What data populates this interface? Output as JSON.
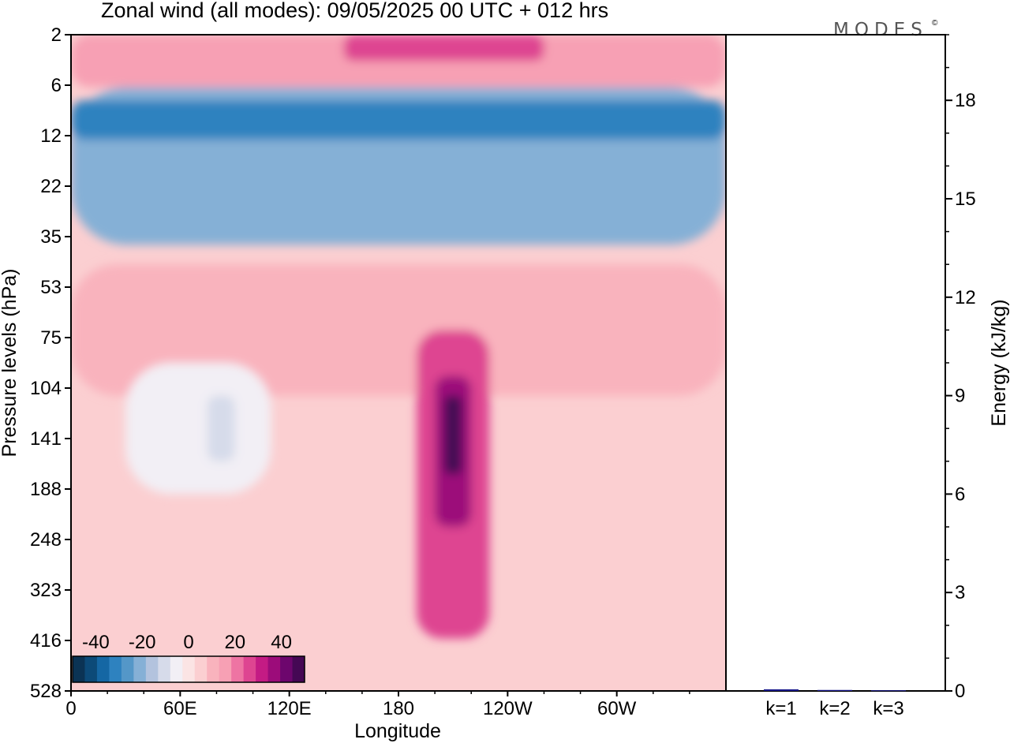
{
  "title": "Zonal wind (all modes):  09/05/2025  00 UTC  + 012 hrs",
  "logo": "MODES",
  "logo_mark": "©",
  "chart_data": [
    {
      "type": "heatmap",
      "title": "Zonal wind (all modes):  09/05/2025  00 UTC  + 012 hrs",
      "xlabel": "Longitude",
      "ylabel": "Pressure levels (hPa)",
      "x_ticks": [
        "0",
        "60E",
        "120E",
        "180",
        "120W",
        "60W"
      ],
      "x_tick_deg": [
        0,
        60,
        120,
        180,
        240,
        300
      ],
      "xlim_deg": [
        0,
        360
      ],
      "y_ticks": [
        "2",
        "6",
        "12",
        "22",
        "35",
        "53",
        "75",
        "104",
        "141",
        "188",
        "248",
        "323",
        "416",
        "528"
      ],
      "y_scale": "categorical pressure levels, 2 hPa at top to 528 hPa at bottom",
      "colorbar": {
        "ticks": [
          "-40",
          "-20",
          "0",
          "20",
          "40"
        ],
        "min": -50,
        "max": 50,
        "step": 5,
        "colors": [
          "#0b3354",
          "#0c4a78",
          "#1567a4",
          "#2e82bf",
          "#5497c8",
          "#85b0d6",
          "#b3c3de",
          "#d6dbea",
          "#f2eff5",
          "#fbe4e4",
          "#fbcfd1",
          "#f9b3bd",
          "#f7a0b4",
          "#ee74a3",
          "#de4591",
          "#c41b84",
          "#9c0c7a",
          "#6d066d",
          "#450854"
        ]
      },
      "regions": [
        {
          "lon": [
            0,
            360
          ],
          "lev": [
            0.0,
            0.08
          ],
          "value": 10,
          "note": "upper westerly band near 2 hPa"
        },
        {
          "lon": [
            150,
            260
          ],
          "lev": [
            0.0,
            0.04
          ],
          "value": 22,
          "note": "strongest westerlies at top"
        },
        {
          "lon": [
            0,
            360
          ],
          "lev": [
            0.08,
            0.32
          ],
          "value": -25,
          "note": "easterly band 6-30 hPa"
        },
        {
          "lon": [
            0,
            360
          ],
          "lev": [
            0.1,
            0.16
          ],
          "value": -35,
          "note": "easterly core near 6-10 hPa"
        },
        {
          "lon": [
            0,
            360
          ],
          "lev": [
            0.35,
            0.55
          ],
          "value": 6
        },
        {
          "lon": [
            190,
            230
          ],
          "lev": [
            0.45,
            0.92
          ],
          "value": 20,
          "note": "jet tongue"
        },
        {
          "lon": [
            200,
            220
          ],
          "lev": [
            0.52,
            0.75
          ],
          "value": 32
        },
        {
          "lon": [
            205,
            215
          ],
          "lev": [
            0.55,
            0.67
          ],
          "value": 42,
          "note": "jet core near 141 hPa"
        },
        {
          "lon": [
            30,
            110
          ],
          "lev": [
            0.5,
            0.7
          ],
          "value": -8,
          "note": "weak easterlies"
        },
        {
          "lon": [
            75,
            90
          ],
          "lev": [
            0.55,
            0.65
          ],
          "value": -15
        }
      ]
    },
    {
      "type": "bar",
      "ylabel": "Energy (kJ/kg)",
      "categories": [
        "k=1",
        "k=2",
        "k=3"
      ],
      "values": [
        0.05,
        0.03,
        0.02
      ],
      "ylim": [
        0,
        20
      ],
      "y_ticks": [
        0,
        3,
        6,
        9,
        12,
        15,
        18
      ],
      "y_minor_step": 1
    }
  ]
}
